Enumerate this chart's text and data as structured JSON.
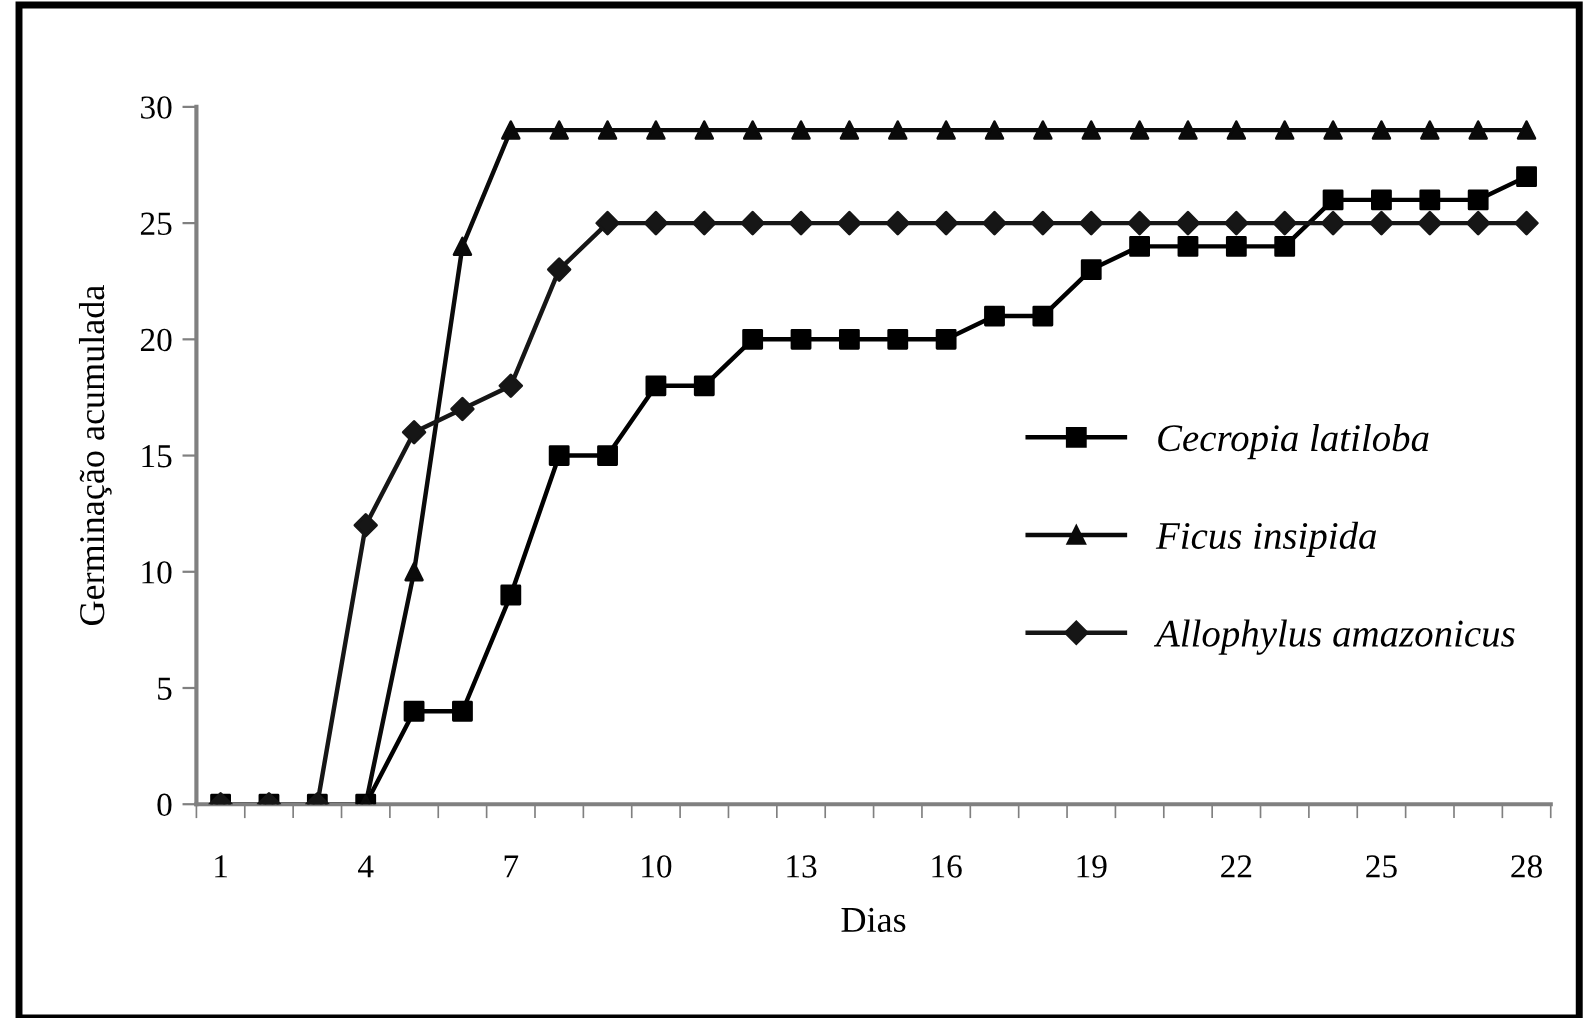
{
  "chart_data": {
    "type": "line",
    "xlabel": "Dias",
    "ylabel": "Germinação acumulada",
    "categories": [
      "1",
      null,
      null,
      "4",
      null,
      null,
      "7",
      null,
      null,
      "10",
      null,
      null,
      "13",
      null,
      null,
      "16",
      null,
      null,
      "19",
      null,
      null,
      "22",
      null,
      null,
      "25",
      null,
      null,
      "28"
    ],
    "series": [
      {
        "name": "Cecropia latiloba",
        "color": "#000000",
        "marker": "square",
        "values": [
          0,
          0,
          0,
          0,
          4,
          4,
          9,
          15,
          15,
          18,
          18,
          20,
          20,
          20,
          20,
          20,
          21,
          21,
          23,
          24,
          24,
          24,
          24,
          26,
          26,
          26,
          26,
          27
        ]
      },
      {
        "name": "Ficus insipida",
        "color": "#0a0a0a",
        "marker": "triangle",
        "values": [
          0,
          0,
          0,
          0,
          10,
          24,
          29,
          29,
          29,
          29,
          29,
          29,
          29,
          29,
          29,
          29,
          29,
          29,
          29,
          29,
          29,
          29,
          29,
          29,
          29,
          29,
          29,
          29
        ]
      },
      {
        "name": "Allophylus amazonicus",
        "color": "#161616",
        "marker": "diamond",
        "values": [
          0,
          0,
          0,
          12,
          16,
          17,
          18,
          23,
          25,
          25,
          25,
          25,
          25,
          25,
          25,
          25,
          25,
          25,
          25,
          25,
          25,
          25,
          25,
          25,
          25,
          25,
          25,
          25
        ]
      }
    ],
    "ylim": [
      0,
      30
    ],
    "yticks": [
      0,
      5,
      10,
      15,
      20,
      25,
      30
    ],
    "grid": false,
    "legend": "right",
    "line_style": "solid"
  }
}
